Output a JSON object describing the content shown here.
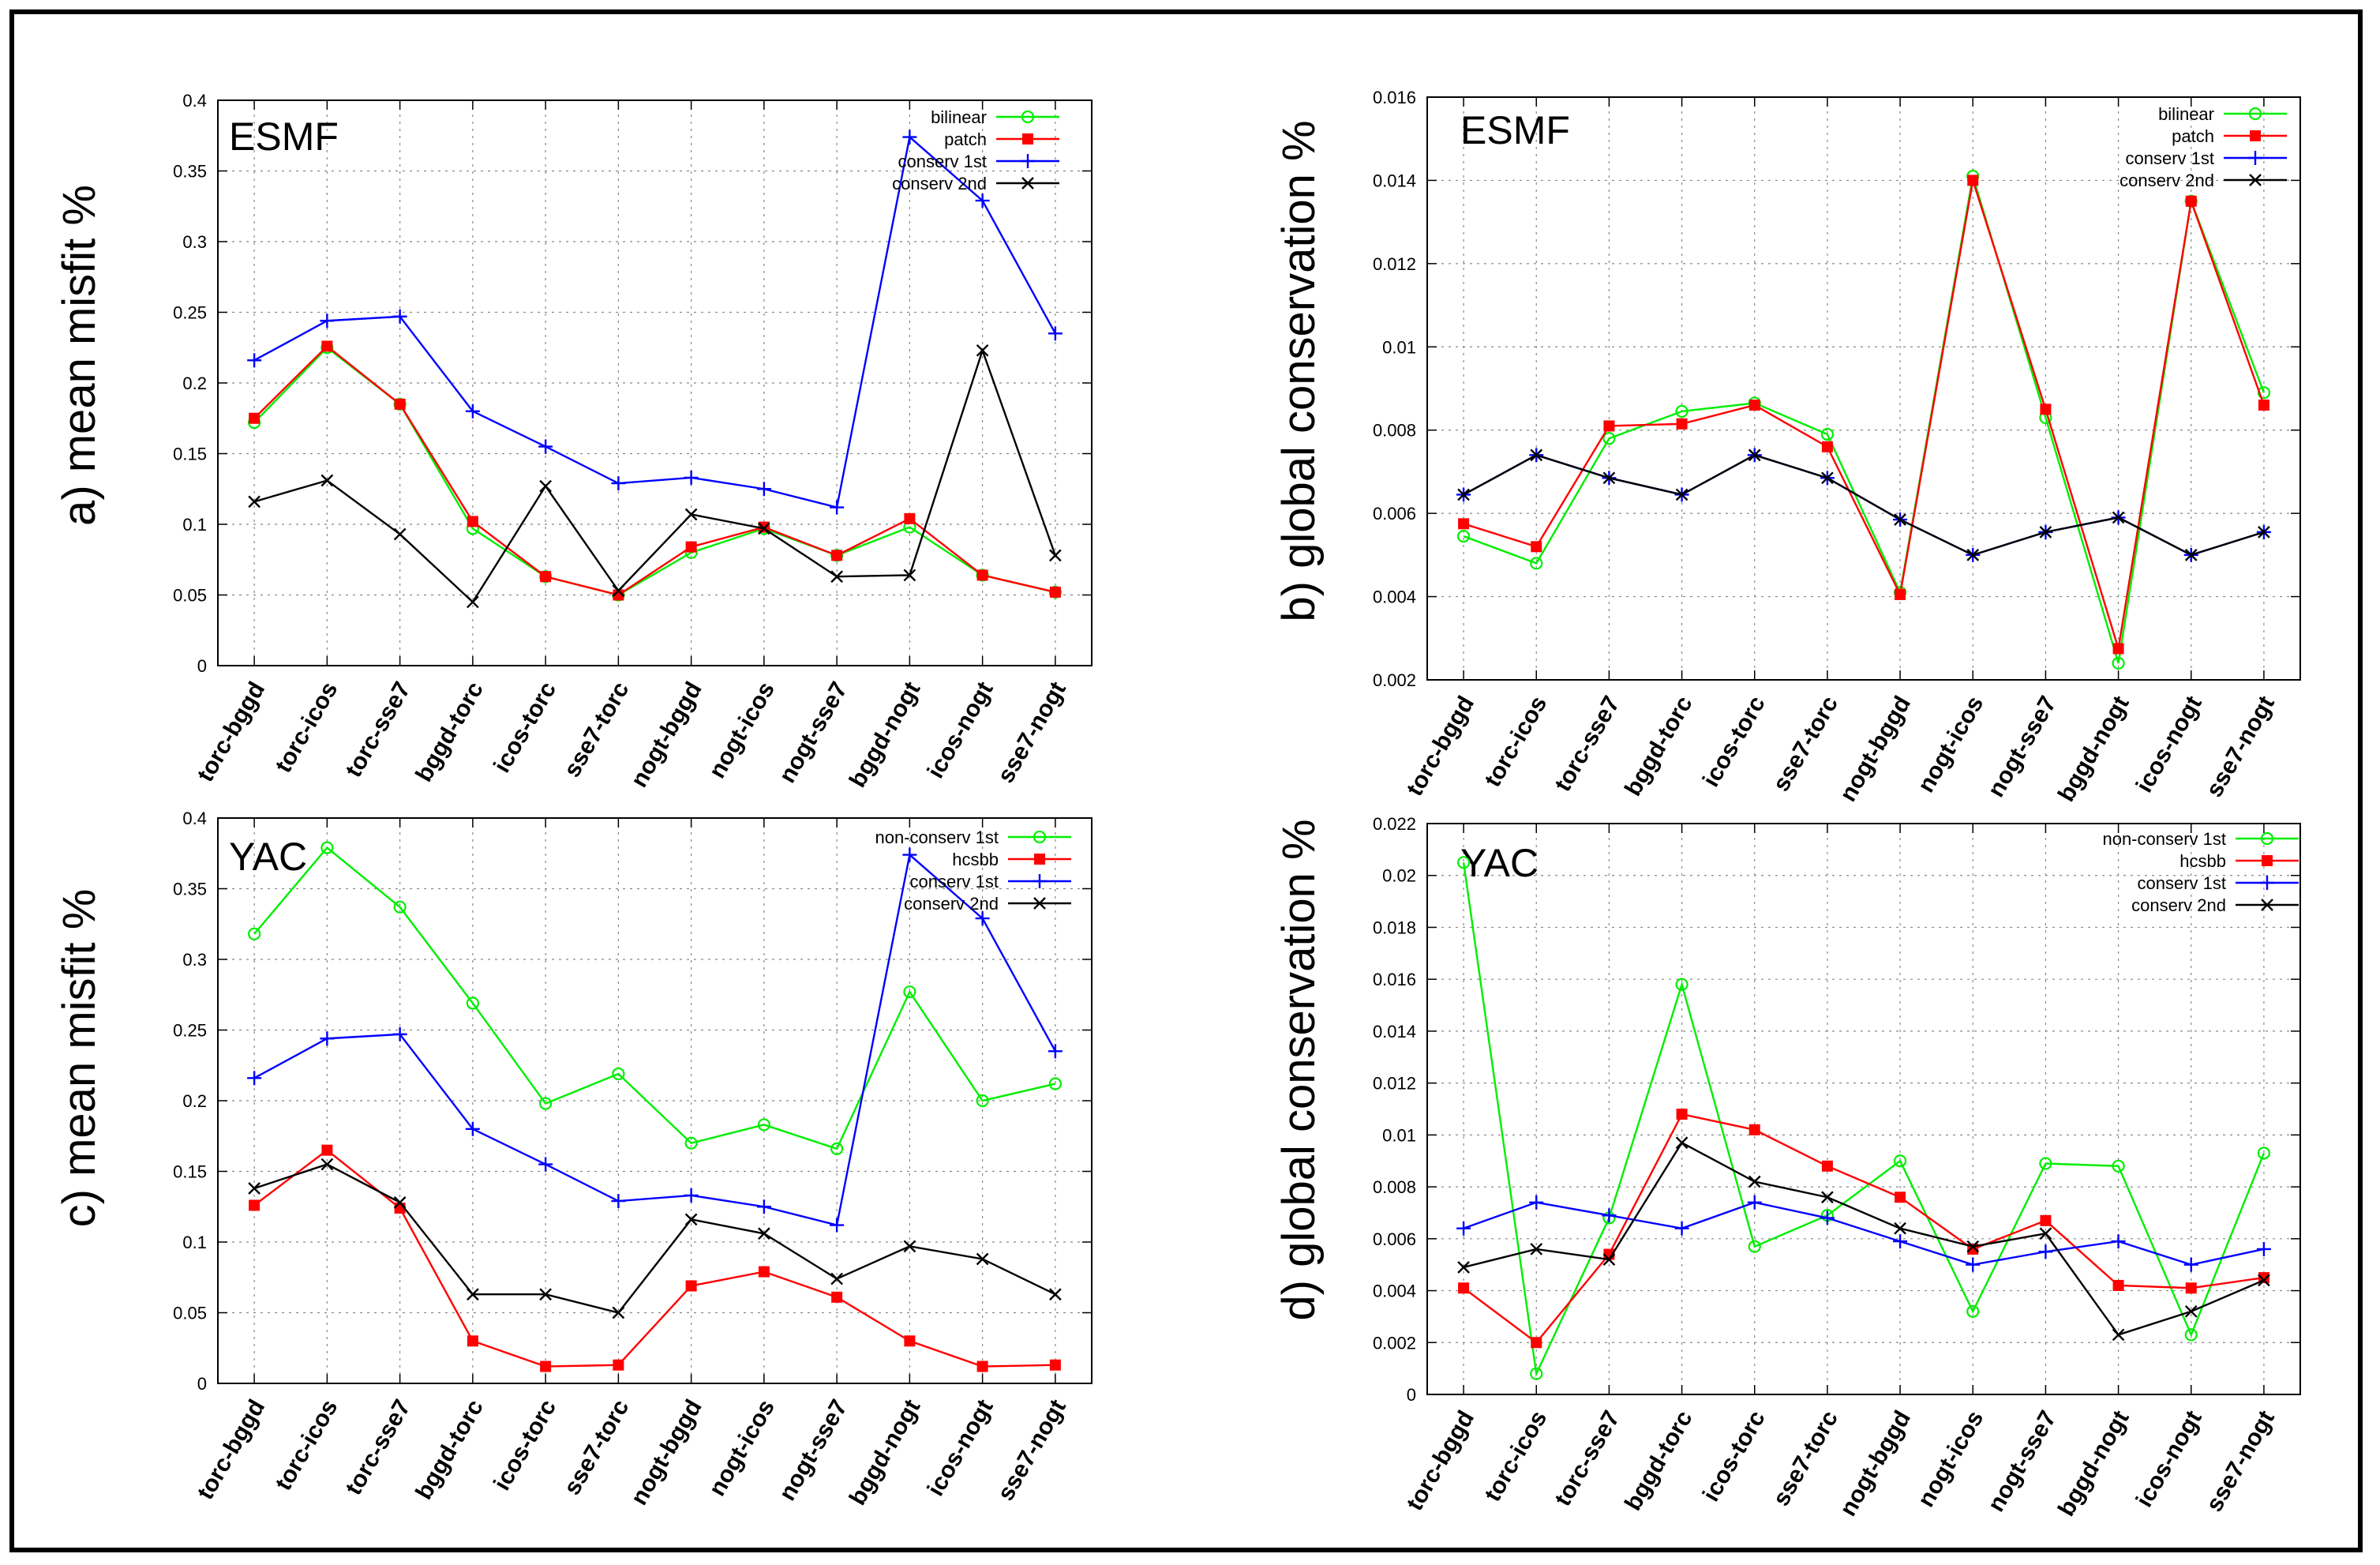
{
  "chart_data": [
    {
      "id": "a",
      "type": "line",
      "title": "ESMF",
      "ylabel": "a) mean misfit %",
      "xlabel": "",
      "categories": [
        "torc-bggd",
        "torc-icos",
        "torc-sse7",
        "bggd-torc",
        "icos-torc",
        "sse7-torc",
        "nogt-bggd",
        "nogt-icos",
        "nogt-sse7",
        "bggd-nogt",
        "icos-nogt",
        "sse7-nogt"
      ],
      "ylim": [
        0,
        0.4
      ],
      "yticks": [
        0,
        0.05,
        0.1,
        0.15,
        0.2,
        0.25,
        0.3,
        0.35,
        0.4
      ],
      "yticklabels": [
        "0",
        "0.05",
        "0.1",
        "0.15",
        "0.2",
        "0.25",
        "0.3",
        "0.35",
        "0.4"
      ],
      "grid": true,
      "legend_position": "top-right",
      "series": [
        {
          "name": "bilinear",
          "color": "#00ee00",
          "marker": "circle",
          "values": [
            0.172,
            0.225,
            0.185,
            0.097,
            0.063,
            0.05,
            0.08,
            0.097,
            0.078,
            0.098,
            0.064,
            0.052
          ]
        },
        {
          "name": "patch",
          "color": "#ff0000",
          "marker": "square",
          "values": [
            0.175,
            0.226,
            0.185,
            0.102,
            0.063,
            0.05,
            0.084,
            0.098,
            0.078,
            0.104,
            0.064,
            0.052
          ]
        },
        {
          "name": "conserv 1st",
          "color": "#0000ff",
          "marker": "plus",
          "values": [
            0.216,
            0.244,
            0.247,
            0.18,
            0.155,
            0.129,
            0.133,
            0.125,
            0.112,
            0.374,
            0.329,
            0.235
          ]
        },
        {
          "name": "conserv 2nd",
          "color": "#000000",
          "marker": "cross",
          "values": [
            0.116,
            0.131,
            0.093,
            0.045,
            0.127,
            0.053,
            0.107,
            0.097,
            0.063,
            0.064,
            0.223,
            0.078
          ]
        }
      ]
    },
    {
      "id": "b",
      "type": "line",
      "title": "ESMF",
      "ylabel": "b) global conservation %",
      "xlabel": "",
      "categories": [
        "torc-bggd",
        "torc-icos",
        "torc-sse7",
        "bggd-torc",
        "icos-torc",
        "sse7-torc",
        "nogt-bggd",
        "nogt-icos",
        "nogt-sse7",
        "bggd-nogt",
        "icos-nogt",
        "sse7-nogt"
      ],
      "ylim": [
        0.002,
        0.016
      ],
      "yticks": [
        0.002,
        0.004,
        0.006,
        0.008,
        0.01,
        0.012,
        0.014,
        0.016
      ],
      "yticklabels": [
        "0.002",
        "0.004",
        "0.006",
        "0.008",
        "0.01",
        "0.012",
        "0.014",
        "0.016"
      ],
      "grid": true,
      "legend_position": "top-right",
      "series": [
        {
          "name": "bilinear",
          "color": "#00ee00",
          "marker": "circle",
          "values": [
            0.00545,
            0.0048,
            0.0078,
            0.00845,
            0.00865,
            0.0079,
            0.0041,
            0.0141,
            0.0083,
            0.0024,
            0.0135,
            0.0089
          ]
        },
        {
          "name": "patch",
          "color": "#ff0000",
          "marker": "square",
          "values": [
            0.00575,
            0.0052,
            0.0081,
            0.00815,
            0.0086,
            0.0076,
            0.00405,
            0.014,
            0.0085,
            0.00275,
            0.0135,
            0.0086
          ]
        },
        {
          "name": "conserv 1st",
          "color": "#0000ff",
          "marker": "plus",
          "values": [
            0.00645,
            0.0074,
            0.00685,
            0.00645,
            0.0074,
            0.00685,
            0.00585,
            0.005,
            0.00555,
            0.0059,
            0.005,
            0.00555
          ]
        },
        {
          "name": "conserv 2nd",
          "color": "#000000",
          "marker": "cross",
          "values": [
            0.00645,
            0.0074,
            0.00685,
            0.00645,
            0.0074,
            0.00685,
            0.00585,
            0.005,
            0.00555,
            0.0059,
            0.005,
            0.00555
          ]
        }
      ]
    },
    {
      "id": "c",
      "type": "line",
      "title": "YAC",
      "ylabel": "c) mean misfit %",
      "xlabel": "",
      "categories": [
        "torc-bggd",
        "torc-icos",
        "torc-sse7",
        "bggd-torc",
        "icos-torc",
        "sse7-torc",
        "nogt-bggd",
        "nogt-icos",
        "nogt-sse7",
        "bggd-nogt",
        "icos-nogt",
        "sse7-nogt"
      ],
      "ylim": [
        0,
        0.4
      ],
      "yticks": [
        0,
        0.05,
        0.1,
        0.15,
        0.2,
        0.25,
        0.3,
        0.35,
        0.4
      ],
      "yticklabels": [
        "0",
        "0.05",
        "0.1",
        "0.15",
        "0.2",
        "0.25",
        "0.3",
        "0.35",
        "0.4"
      ],
      "grid": true,
      "legend_position": "top-right",
      "series": [
        {
          "name": "non-conserv 1st",
          "color": "#00ee00",
          "marker": "circle",
          "values": [
            0.318,
            0.379,
            0.337,
            0.269,
            0.198,
            0.219,
            0.17,
            0.183,
            0.166,
            0.277,
            0.2,
            0.212
          ]
        },
        {
          "name": "hcsbb",
          "color": "#ff0000",
          "marker": "square",
          "values": [
            0.126,
            0.165,
            0.124,
            0.03,
            0.012,
            0.013,
            0.069,
            0.079,
            0.061,
            0.03,
            0.012,
            0.013
          ]
        },
        {
          "name": "conserv 1st",
          "color": "#0000ff",
          "marker": "plus",
          "values": [
            0.216,
            0.244,
            0.247,
            0.18,
            0.155,
            0.129,
            0.133,
            0.125,
            0.112,
            0.374,
            0.329,
            0.235
          ]
        },
        {
          "name": "conserv 2nd",
          "color": "#000000",
          "marker": "cross",
          "values": [
            0.138,
            0.155,
            0.128,
            0.063,
            0.063,
            0.05,
            0.116,
            0.106,
            0.074,
            0.097,
            0.088,
            0.063
          ]
        }
      ]
    },
    {
      "id": "d",
      "type": "line",
      "title": "YAC",
      "ylabel": "d) global conservation %",
      "xlabel": "",
      "categories": [
        "torc-bggd",
        "torc-icos",
        "torc-sse7",
        "bggd-torc",
        "icos-torc",
        "sse7-torc",
        "nogt-bggd",
        "nogt-icos",
        "nogt-sse7",
        "bggd-nogt",
        "icos-nogt",
        "sse7-nogt"
      ],
      "ylim": [
        0,
        0.022
      ],
      "yticks": [
        0,
        0.002,
        0.004,
        0.006,
        0.008,
        0.01,
        0.012,
        0.014,
        0.016,
        0.018,
        0.02,
        0.022
      ],
      "yticklabels": [
        "0",
        "0.002",
        "0.004",
        "0.006",
        "0.008",
        "0.01",
        "0.012",
        "0.014",
        "0.016",
        "0.018",
        "0.02",
        "0.022"
      ],
      "grid": true,
      "legend_position": "top-right",
      "series": [
        {
          "name": "non-conserv 1st",
          "color": "#00ee00",
          "marker": "circle",
          "values": [
            0.0205,
            0.0008,
            0.0068,
            0.0158,
            0.0057,
            0.0069,
            0.009,
            0.0032,
            0.0089,
            0.0088,
            0.0023,
            0.0093
          ]
        },
        {
          "name": "hcsbb",
          "color": "#ff0000",
          "marker": "square",
          "values": [
            0.0041,
            0.002,
            0.0054,
            0.0108,
            0.0102,
            0.0088,
            0.0076,
            0.0056,
            0.0067,
            0.0042,
            0.0041,
            0.0045
          ]
        },
        {
          "name": "conserv 1st",
          "color": "#0000ff",
          "marker": "plus",
          "values": [
            0.0064,
            0.0074,
            0.0069,
            0.0064,
            0.0074,
            0.0068,
            0.0059,
            0.005,
            0.0055,
            0.0059,
            0.005,
            0.0056
          ]
        },
        {
          "name": "conserv 2nd",
          "color": "#000000",
          "marker": "cross",
          "values": [
            0.0049,
            0.0056,
            0.0052,
            0.0097,
            0.0082,
            0.0076,
            0.0064,
            0.0057,
            0.0062,
            0.0023,
            0.0032,
            0.0044
          ]
        }
      ]
    }
  ]
}
